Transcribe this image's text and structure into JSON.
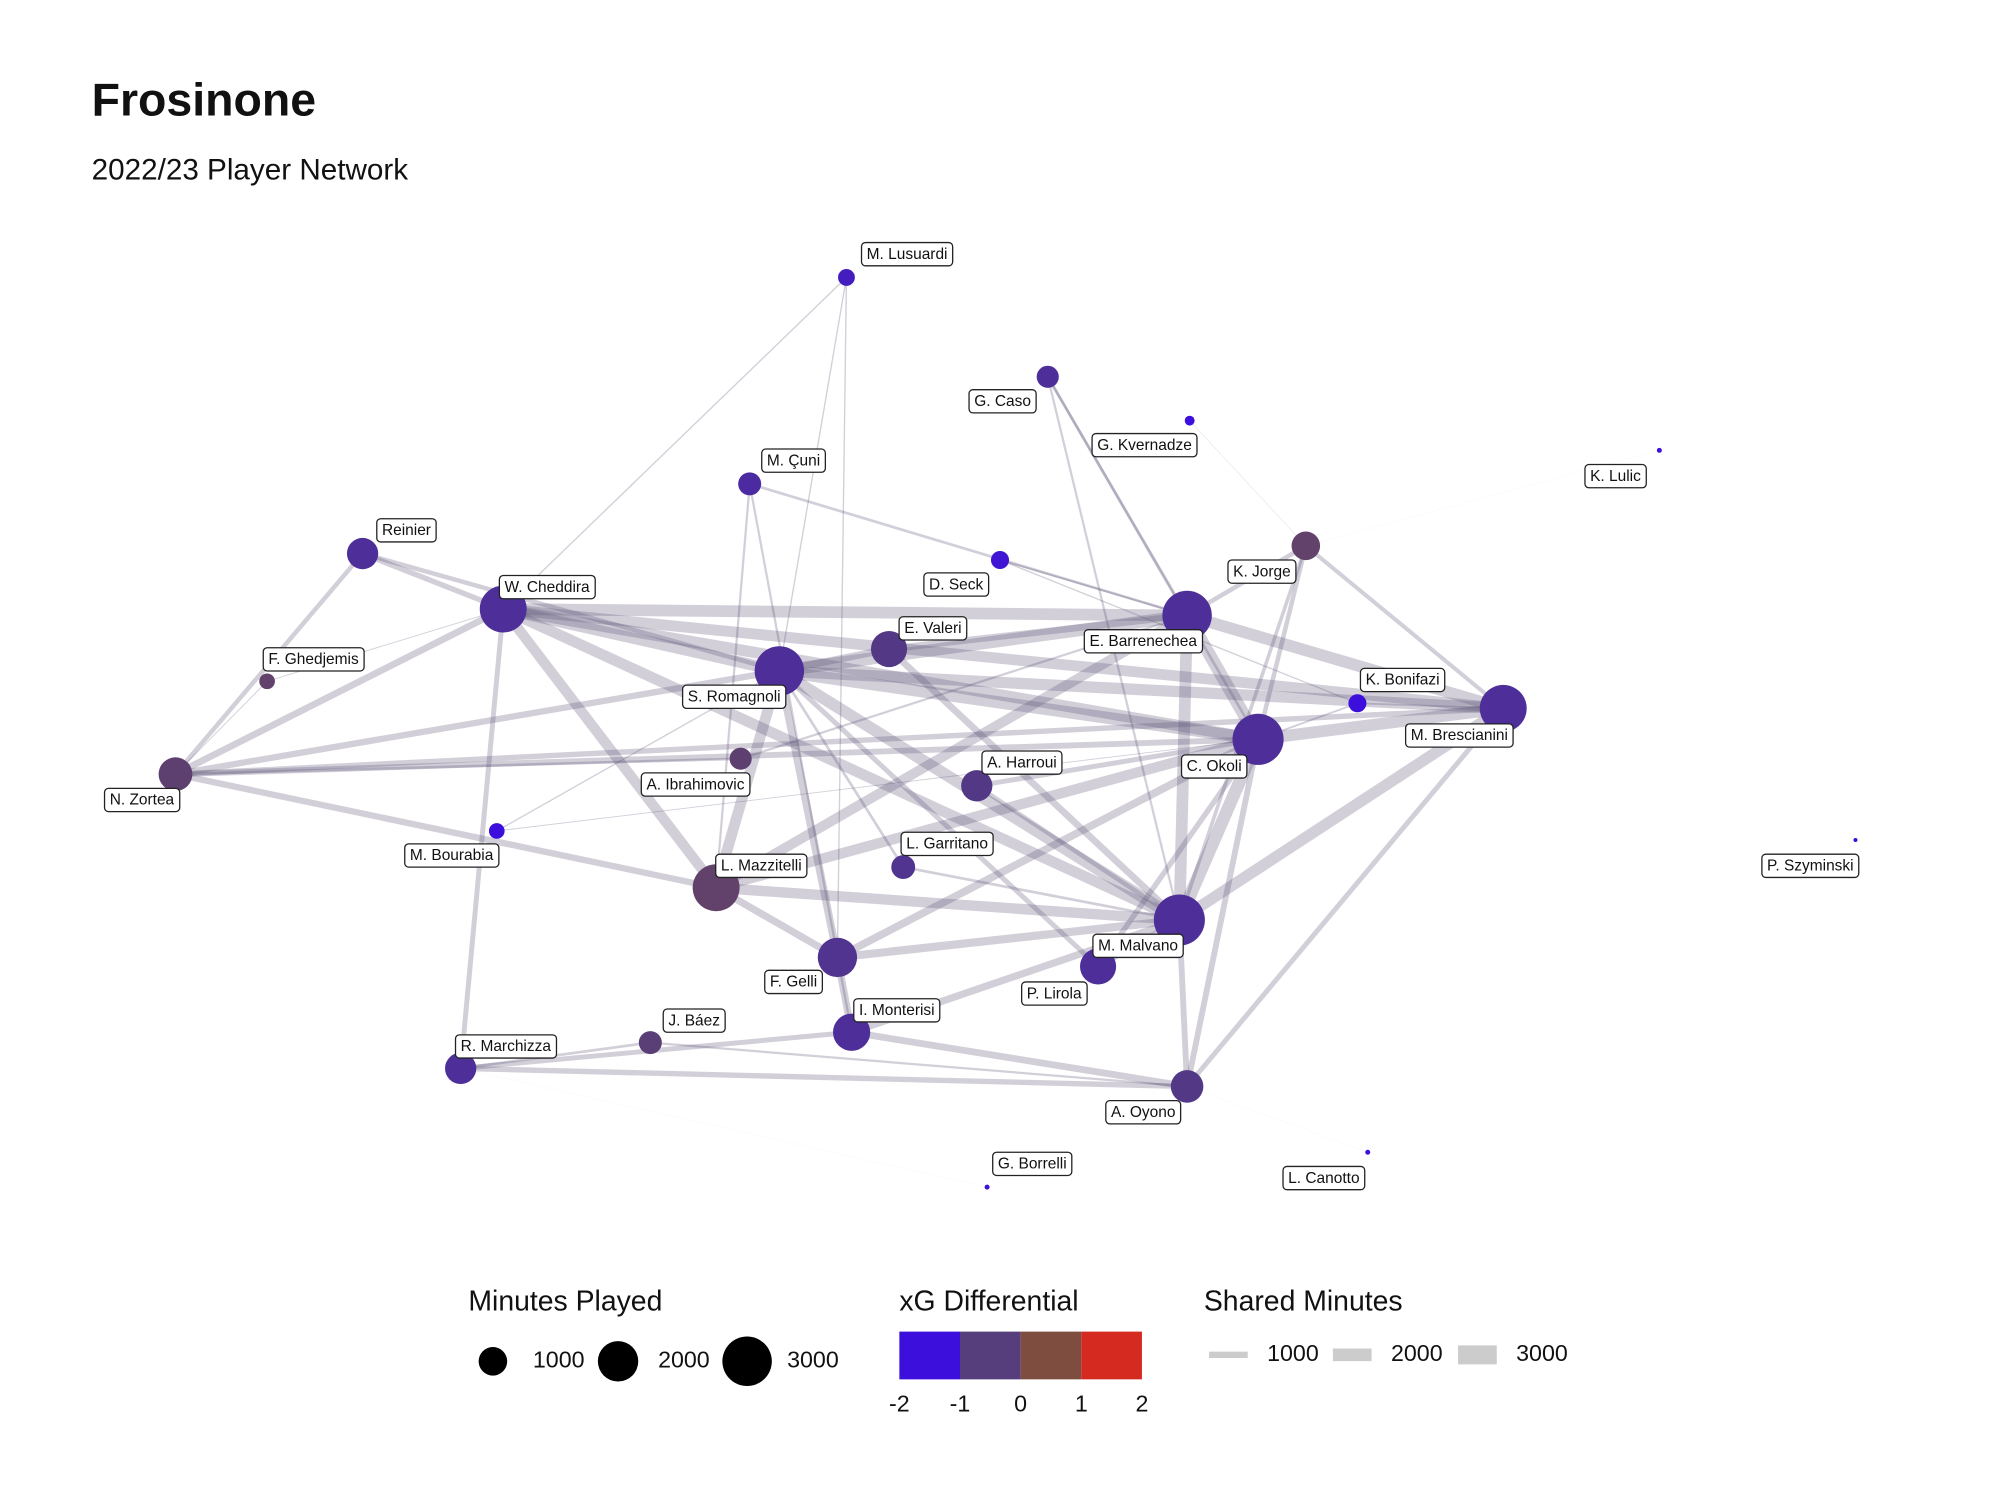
{
  "chart_data": {
    "type": "network",
    "title": "Frosinone",
    "subtitle": "2022/23 Player Network",
    "nodes": [
      {
        "name": "M. Lusuardi",
        "minutes": 350,
        "xg": -1.2
      },
      {
        "name": "G. Caso",
        "minutes": 600,
        "xg": -0.8
      },
      {
        "name": "G. Kvernadze",
        "minutes": 120,
        "xg": -2
      },
      {
        "name": "K. Lulic",
        "minutes": 30,
        "xg": -2
      },
      {
        "name": "M. Çuni",
        "minutes": 650,
        "xg": -0.9
      },
      {
        "name": "Reinier",
        "minutes": 1200,
        "xg": -0.8
      },
      {
        "name": "D. Seck",
        "minutes": 400,
        "xg": -1.4
      },
      {
        "name": "K. Jorge",
        "minutes": 1000,
        "xg": -0.2
      },
      {
        "name": "W. Cheddira",
        "minutes": 2700,
        "xg": -0.8
      },
      {
        "name": "E. Barrenechea",
        "minutes": 3000,
        "xg": -0.8
      },
      {
        "name": "E. Valeri",
        "minutes": 1600,
        "xg": -0.6
      },
      {
        "name": "F. Ghedjemis",
        "minutes": 300,
        "xg": -0.2
      },
      {
        "name": "S. Romagnoli",
        "minutes": 3000,
        "xg": -0.8
      },
      {
        "name": "K. Bonifazi",
        "minutes": 400,
        "xg": -1.6
      },
      {
        "name": "M. Brescianini",
        "minutes": 2700,
        "xg": -0.8
      },
      {
        "name": "C. Okoli",
        "minutes": 3200,
        "xg": -0.8
      },
      {
        "name": "N. Zortea",
        "minutes": 1400,
        "xg": -0.3
      },
      {
        "name": "A. Ibrahimovic",
        "minutes": 600,
        "xg": -0.3
      },
      {
        "name": "A. Harroui",
        "minutes": 1200,
        "xg": -0.6
      },
      {
        "name": "M. Bourabia",
        "minutes": 300,
        "xg": -1.9
      },
      {
        "name": "L. Garritano",
        "minutes": 700,
        "xg": -0.7
      },
      {
        "name": "L. Mazzitelli",
        "minutes": 2700,
        "xg": -0.2
      },
      {
        "name": "M. Malvano",
        "minutes": 3200,
        "xg": -0.8
      },
      {
        "name": "P. Lirola",
        "minutes": 1600,
        "xg": -0.8
      },
      {
        "name": "F. Gelli",
        "minutes": 1900,
        "xg": -0.7
      },
      {
        "name": "I. Monterisi",
        "minutes": 1700,
        "xg": -0.8
      },
      {
        "name": "J. Báez",
        "minutes": 650,
        "xg": -0.4
      },
      {
        "name": "R. Marchizza",
        "minutes": 1200,
        "xg": -0.8
      },
      {
        "name": "A. Oyono",
        "minutes": 1300,
        "xg": -0.6
      },
      {
        "name": "G. Borrelli",
        "minutes": 30,
        "xg": -2
      },
      {
        "name": "L. Canotto",
        "minutes": 30,
        "xg": -2
      },
      {
        "name": "P. Szyminski",
        "minutes": 20,
        "xg": -2
      }
    ],
    "edges": [
      [
        8,
        12,
        2500
      ],
      [
        8,
        9,
        2600
      ],
      [
        8,
        15,
        2500
      ],
      [
        8,
        14,
        2400
      ],
      [
        8,
        16,
        1500
      ],
      [
        8,
        21,
        2300
      ],
      [
        8,
        22,
        2400
      ],
      [
        9,
        12,
        2700
      ],
      [
        9,
        15,
        2800
      ],
      [
        9,
        14,
        2600
      ],
      [
        9,
        22,
        2600
      ],
      [
        12,
        15,
        2700
      ],
      [
        12,
        14,
        2500
      ],
      [
        12,
        22,
        2600
      ],
      [
        12,
        21,
        2400
      ],
      [
        15,
        14,
        2600
      ],
      [
        15,
        22,
        2800
      ],
      [
        14,
        22,
        2500
      ],
      [
        16,
        12,
        1400
      ],
      [
        16,
        21,
        1400
      ],
      [
        16,
        15,
        1300
      ],
      [
        16,
        14,
        1200
      ],
      [
        21,
        22,
        2300
      ],
      [
        21,
        15,
        2300
      ],
      [
        21,
        9,
        2200
      ],
      [
        24,
        22,
        1800
      ],
      [
        24,
        15,
        1700
      ],
      [
        24,
        12,
        1700
      ],
      [
        25,
        28,
        1500
      ],
      [
        25,
        22,
        1600
      ],
      [
        27,
        28,
        1200
      ],
      [
        27,
        8,
        1100
      ],
      [
        27,
        25,
        1100
      ],
      [
        28,
        22,
        1300
      ],
      [
        28,
        15,
        1300
      ],
      [
        28,
        14,
        1100
      ],
      [
        5,
        8,
        1200
      ],
      [
        5,
        16,
        1000
      ],
      [
        5,
        12,
        1000
      ],
      [
        10,
        9,
        1500
      ],
      [
        10,
        12,
        1600
      ],
      [
        10,
        22,
        1500
      ],
      [
        18,
        15,
        1100
      ],
      [
        18,
        22,
        1000
      ],
      [
        23,
        15,
        1200
      ],
      [
        23,
        22,
        1300
      ],
      [
        23,
        12,
        1100
      ],
      [
        7,
        9,
        1000
      ],
      [
        7,
        14,
        900
      ],
      [
        7,
        15,
        1000
      ],
      [
        7,
        22,
        800
      ],
      [
        4,
        9,
        600
      ],
      [
        4,
        25,
        500
      ],
      [
        4,
        21,
        500
      ],
      [
        0,
        8,
        300
      ],
      [
        0,
        12,
        300
      ],
      [
        0,
        24,
        300
      ],
      [
        1,
        15,
        600
      ],
      [
        1,
        22,
        500
      ],
      [
        1,
        9,
        600
      ],
      [
        6,
        9,
        400
      ],
      [
        6,
        13,
        300
      ],
      [
        13,
        14,
        400
      ],
      [
        13,
        15,
        400
      ],
      [
        19,
        12,
        300
      ],
      [
        19,
        15,
        200
      ],
      [
        20,
        22,
        600
      ],
      [
        20,
        12,
        600
      ],
      [
        17,
        16,
        600
      ],
      [
        17,
        9,
        500
      ],
      [
        26,
        27,
        600
      ],
      [
        26,
        28,
        500
      ],
      [
        11,
        16,
        200
      ],
      [
        11,
        8,
        200
      ],
      [
        2,
        7,
        100
      ],
      [
        30,
        28,
        20
      ],
      [
        29,
        27,
        20
      ],
      [
        3,
        7,
        20
      ],
      [
        31,
        14,
        10
      ],
      [
        24,
        25,
        1600
      ],
      [
        24,
        21,
        1600
      ]
    ],
    "edge_color": "#5e5378",
    "size_legend": {
      "title": "Minutes Played",
      "values": [
        1000,
        2000,
        3000
      ],
      "color": "#000000"
    },
    "color_legend": {
      "title": "xG Differential",
      "ticks": [
        -2,
        -1,
        0,
        1,
        2
      ],
      "colors": [
        "#3c0fdc",
        "#563d7c",
        "#7f4c40",
        "#d42a1f"
      ]
    },
    "width_legend": {
      "title": "Shared Minutes",
      "values": [
        1000,
        2000,
        3000
      ],
      "color": "#cccccc"
    }
  }
}
